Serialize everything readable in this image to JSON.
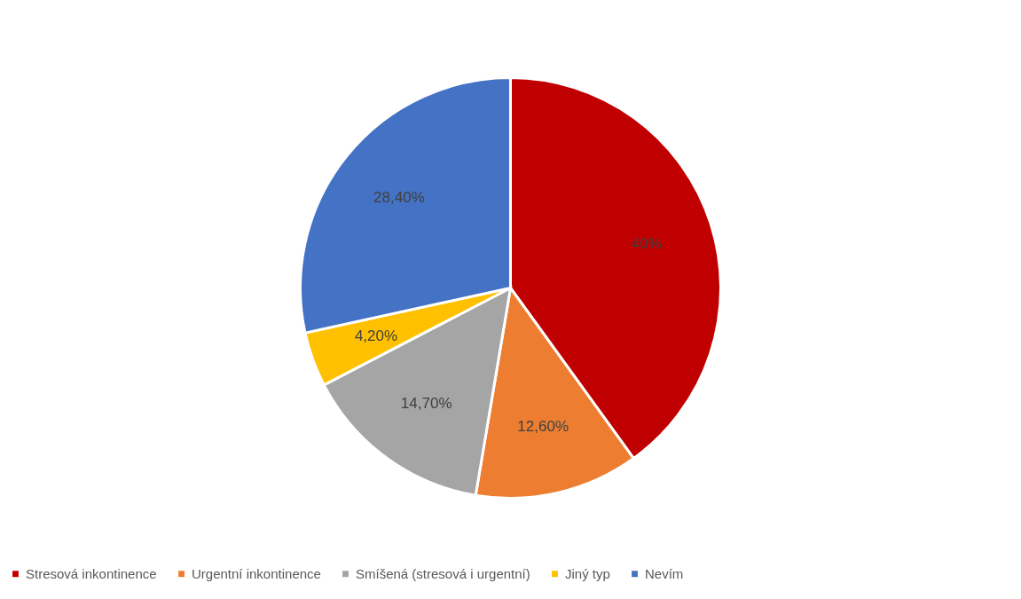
{
  "chart_data": {
    "type": "pie",
    "categories": [
      "Stresová inkontinence",
      "Urgentní inkontinence",
      "Smíšená (stresová i urgentní)",
      "Jiný typ",
      "Nevím"
    ],
    "values": [
      40,
      12.6,
      14.7,
      4.2,
      28.4
    ],
    "value_labels": [
      "40%",
      "12,60%",
      "14,70%",
      "4,20%",
      "28,40%"
    ],
    "colors": [
      "#c00000",
      "#ed7d31",
      "#a5a5a5",
      "#ffc000",
      "#4472c4"
    ],
    "legend": "bottom"
  }
}
